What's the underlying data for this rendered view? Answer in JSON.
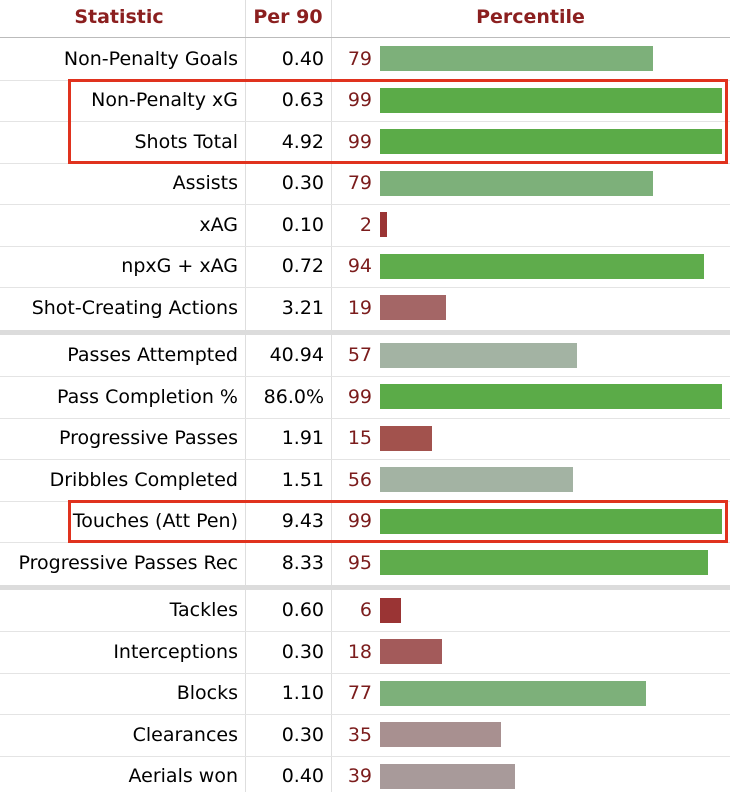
{
  "table": {
    "header": [
      "Statistic",
      "Per 90",
      "Percentile"
    ],
    "xlim": [
      0,
      100
    ],
    "groups": [
      {
        "rows": [
          {
            "statistic": "Non-Penalty Goals",
            "per90": "0.40",
            "percentile": 79,
            "color": "#7db07a"
          },
          {
            "statistic": "Non-Penalty xG",
            "per90": "0.63",
            "percentile": 99,
            "color": "#5bab48",
            "highlight": true
          },
          {
            "statistic": "Shots Total",
            "per90": "4.92",
            "percentile": 99,
            "color": "#5bab48",
            "highlight": true
          },
          {
            "statistic": "Assists",
            "per90": "0.30",
            "percentile": 79,
            "color": "#7db07a"
          },
          {
            "statistic": "xAG",
            "per90": "0.10",
            "percentile": 2,
            "color": "#9a3434"
          },
          {
            "statistic": "npxG + xAG",
            "per90": "0.72",
            "percentile": 94,
            "color": "#5fac4c"
          },
          {
            "statistic": "Shot-Creating Actions",
            "per90": "3.21",
            "percentile": 19,
            "color": "#a46666"
          }
        ]
      },
      {
        "rows": [
          {
            "statistic": "Passes Attempted",
            "per90": "40.94",
            "percentile": 57,
            "color": "#a3b3a3"
          },
          {
            "statistic": "Pass Completion %",
            "per90": "86.0%",
            "percentile": 99,
            "color": "#5bab48"
          },
          {
            "statistic": "Progressive Passes",
            "per90": "1.91",
            "percentile": 15,
            "color": "#a2524d"
          },
          {
            "statistic": "Dribbles Completed",
            "per90": "1.51",
            "percentile": 56,
            "color": "#a3b3a3"
          },
          {
            "statistic": "Touches (Att Pen)",
            "per90": "9.43",
            "percentile": 99,
            "color": "#5bab48",
            "highlight": true
          },
          {
            "statistic": "Progressive Passes Rec",
            "per90": "8.33",
            "percentile": 95,
            "color": "#5fac4c"
          }
        ]
      },
      {
        "rows": [
          {
            "statistic": "Tackles",
            "per90": "0.60",
            "percentile": 6,
            "color": "#9a3434"
          },
          {
            "statistic": "Interceptions",
            "per90": "0.30",
            "percentile": 18,
            "color": "#a35a5a"
          },
          {
            "statistic": "Blocks",
            "per90": "1.10",
            "percentile": 77,
            "color": "#7db07a"
          },
          {
            "statistic": "Clearances",
            "per90": "0.30",
            "percentile": 35,
            "color": "#a89090"
          },
          {
            "statistic": "Aerials won",
            "per90": "0.40",
            "percentile": 39,
            "color": "#a89a9a"
          }
        ]
      }
    ]
  }
}
